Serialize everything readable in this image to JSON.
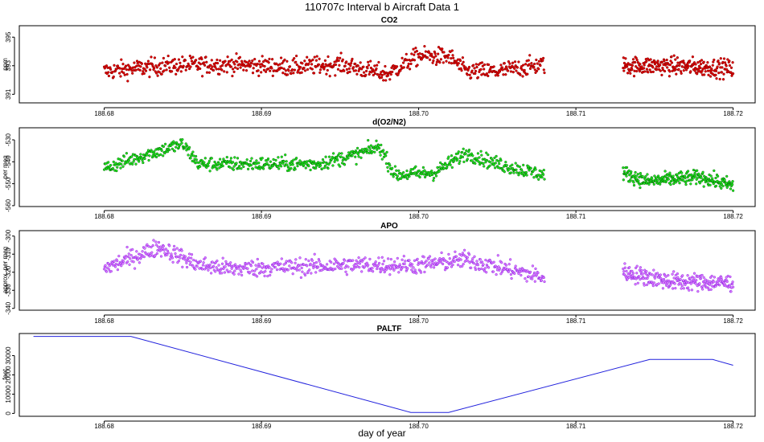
{
  "figure": {
    "title": "110707c   Interval b Aircraft Data 1",
    "xlabel": "day of year"
  },
  "colors": {
    "co2": "#e00000",
    "co2_edge": "#8b0000",
    "o2n2": "#22ee22",
    "o2n2_edge": "#006400",
    "apo": "#e27cff",
    "apo_edge": "#8a2be2",
    "paltf": "#2222dd"
  },
  "chart_data": [
    {
      "id": "co2",
      "type": "scatter",
      "title": "CO2",
      "ylabel": "ppm",
      "xlim": [
        188.6746,
        188.7214
      ],
      "ylim": [
        390.4,
        395.8
      ],
      "xticks": [
        188.68,
        188.69,
        188.7,
        188.71,
        188.72
      ],
      "xtick_labels": [
        "188.68",
        "188.69",
        "188.70",
        "188.71",
        "188.72"
      ],
      "yticks": [
        391,
        393,
        395
      ],
      "ytick_labels": [
        "391",
        "393",
        "395"
      ],
      "segments": [
        {
          "x_start": 188.68,
          "x_end": 188.708,
          "n": 750,
          "trend_x": [
            188.68,
            188.684,
            188.688,
            188.692,
            188.695,
            188.698,
            188.7,
            188.702,
            188.703,
            188.705,
            188.708
          ],
          "trend_y": [
            392.6,
            393.0,
            393.1,
            392.9,
            393.1,
            392.4,
            393.7,
            393.6,
            392.6,
            392.6,
            393.1
          ],
          "noise": 0.45
        },
        {
          "x_start": 188.713,
          "x_end": 188.72,
          "n": 260,
          "trend_x": [
            188.713,
            188.716,
            188.72
          ],
          "trend_y": [
            393.0,
            393.0,
            392.8
          ],
          "noise": 0.45
        }
      ]
    },
    {
      "id": "o2n2",
      "type": "scatter",
      "title": "d(O2/N2)",
      "ylabel": "per meg",
      "xlim": [
        188.6746,
        188.7214
      ],
      "ylim": [
        -560.4,
        -524.5
      ],
      "xticks": [
        188.68,
        188.69,
        188.7,
        188.71,
        188.72
      ],
      "xtick_labels": [
        "188.68",
        "188.69",
        "188.70",
        "188.71",
        "188.72"
      ],
      "yticks": [
        -530,
        -540,
        -550,
        -560
      ],
      "ytick_labels": [
        "-530",
        "-540",
        "-550",
        "-560"
      ],
      "segments": [
        {
          "x_start": 188.68,
          "x_end": 188.708,
          "n": 750,
          "trend_x": [
            188.68,
            188.683,
            188.685,
            188.686,
            188.69,
            188.6935,
            188.696,
            188.6975,
            188.6985,
            188.701,
            188.703,
            188.705,
            188.708
          ],
          "trend_y": [
            -543.0,
            -536.0,
            -532.0,
            -541.0,
            -541.0,
            -541.0,
            -537.0,
            -533.0,
            -546.0,
            -545.0,
            -536.0,
            -541.0,
            -546.0
          ],
          "noise": 2.3
        },
        {
          "x_start": 188.713,
          "x_end": 188.72,
          "n": 260,
          "trend_x": [
            188.713,
            188.7145,
            188.716,
            188.718,
            188.72
          ],
          "trend_y": [
            -545.0,
            -549.0,
            -548.0,
            -547.0,
            -551.0
          ],
          "noise": 2.3
        }
      ]
    },
    {
      "id": "apo",
      "type": "scatter",
      "title": "APO",
      "ylabel": "approx. per meg",
      "xlim": [
        188.6746,
        188.7214
      ],
      "ylim": [
        -341.0,
        -297.0
      ],
      "xticks": [
        188.68,
        188.69,
        188.7,
        188.71,
        188.72
      ],
      "xtick_labels": [
        "188.68",
        "188.69",
        "188.70",
        "188.71",
        "188.72"
      ],
      "yticks": [
        -300,
        -310,
        -320,
        -330,
        -340
      ],
      "ytick_labels": [
        "-300",
        "-310",
        "-320",
        "-330",
        "-340"
      ],
      "segments": [
        {
          "x_start": 188.68,
          "x_end": 188.708,
          "n": 750,
          "trend_x": [
            188.68,
            188.6835,
            188.686,
            188.688,
            188.692,
            188.696,
            188.7,
            188.703,
            188.708
          ],
          "trend_y": [
            -318.0,
            -306.0,
            -316.0,
            -318.0,
            -317.0,
            -316.0,
            -316.0,
            -313.0,
            -323.0
          ],
          "noise": 3.5
        },
        {
          "x_start": 188.713,
          "x_end": 188.72,
          "n": 260,
          "trend_x": [
            188.713,
            188.716,
            188.72
          ],
          "trend_y": [
            -320.0,
            -325.0,
            -326.0
          ],
          "noise": 3.5
        }
      ]
    },
    {
      "id": "paltf",
      "type": "line",
      "title": "PALTF",
      "ylabel": "feet",
      "xlim": [
        188.6746,
        188.7214
      ],
      "ylim": [
        -1500.0,
        41500.0
      ],
      "xticks": [
        188.68,
        188.69,
        188.7,
        188.71,
        188.72
      ],
      "xtick_labels": [
        "188.68",
        "188.69",
        "188.70",
        "188.71",
        "188.72"
      ],
      "yticks": [
        0,
        10000,
        20000,
        30000
      ],
      "ytick_labels": [
        "0",
        "10000",
        "20000",
        "30000"
      ],
      "x": [
        188.6755,
        188.6817,
        188.6995,
        188.7019,
        188.7147,
        188.7187,
        188.72
      ],
      "y": [
        40000,
        40000,
        500,
        500,
        28000,
        28000,
        25000
      ]
    }
  ]
}
